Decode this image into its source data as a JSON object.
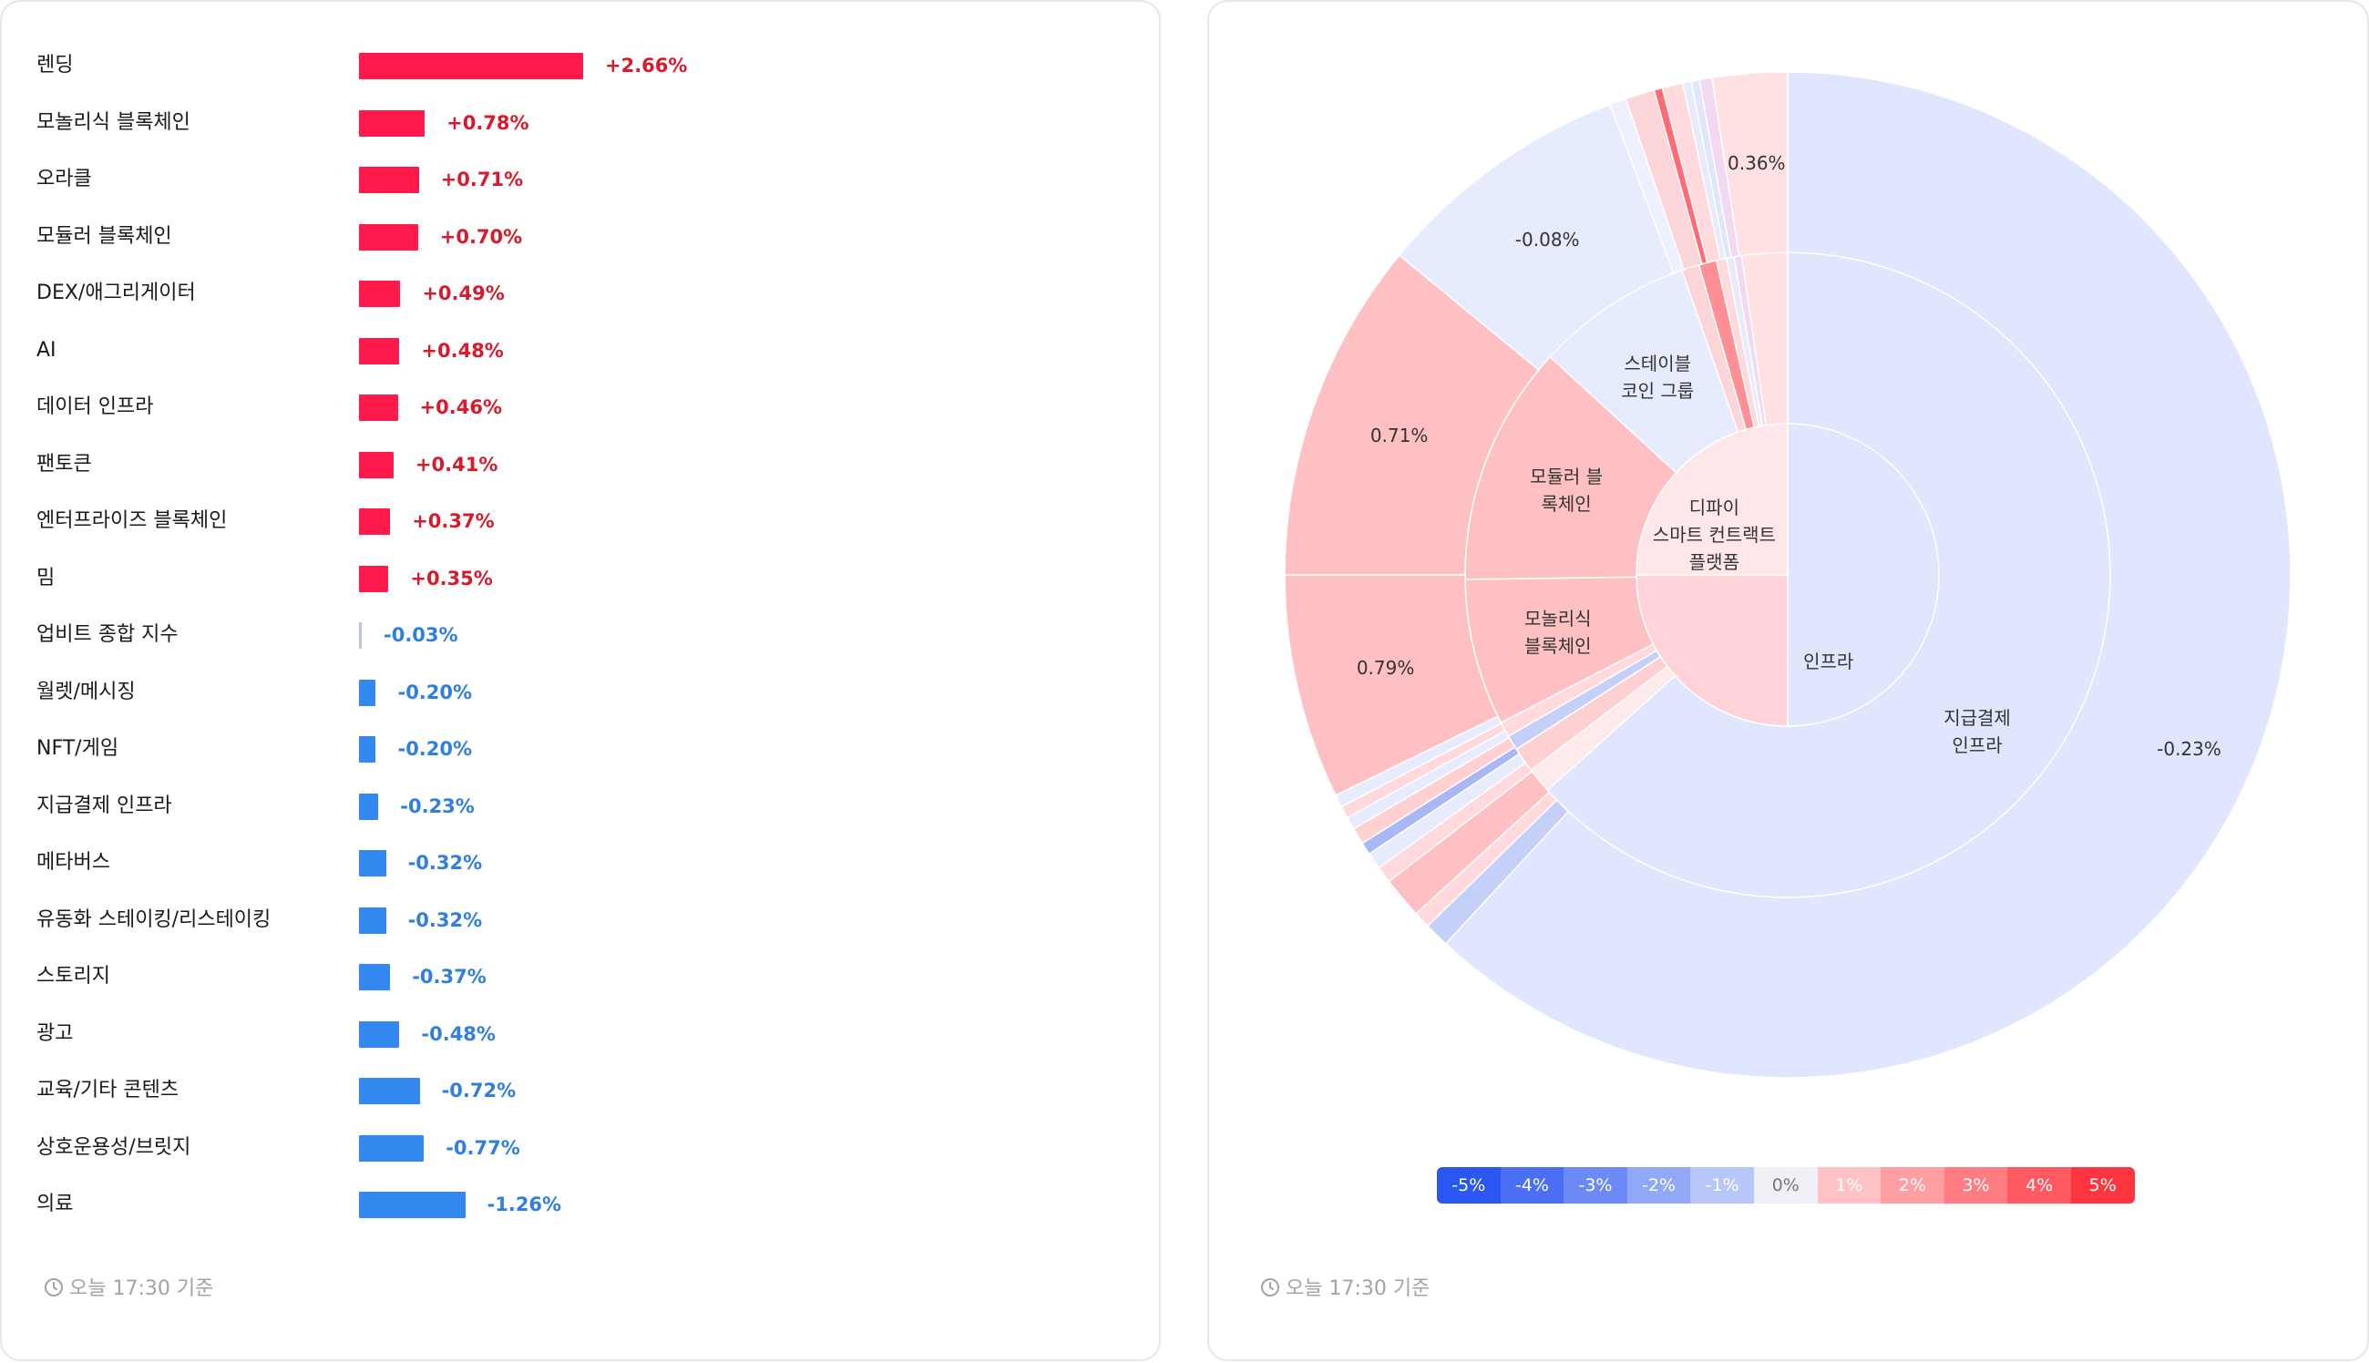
{
  "chart_data": [
    {
      "type": "bar",
      "orientation": "horizontal",
      "categories": [
        "렌딩",
        "모놀리식 블록체인",
        "오라클",
        "모듈러 블록체인",
        "DEX/애그리게이터",
        "AI",
        "데이터 인프라",
        "팬토큰",
        "엔터프라이즈 블록체인",
        "밈",
        "업비트 종합 지수",
        "월렛/메시징",
        "NFT/게임",
        "지급결제 인프라",
        "메타버스",
        "유동화 스테이킹/리스테이킹",
        "스토리지",
        "광고",
        "교육/기타 콘텐츠",
        "상호운용성/브릿지",
        "의료"
      ],
      "values": [
        2.66,
        0.78,
        0.71,
        0.7,
        0.49,
        0.48,
        0.46,
        0.41,
        0.37,
        0.35,
        -0.03,
        -0.2,
        -0.2,
        -0.23,
        -0.32,
        -0.32,
        -0.37,
        -0.48,
        -0.72,
        -0.77,
        -1.26
      ],
      "value_labels": [
        "+2.66%",
        "+0.78%",
        "+0.71%",
        "+0.70%",
        "+0.49%",
        "+0.48%",
        "+0.46%",
        "+0.41%",
        "+0.37%",
        "+0.35%",
        "-0.03%",
        "-0.20%",
        "-0.20%",
        "-0.23%",
        "-0.32%",
        "-0.32%",
        "-0.37%",
        "-0.48%",
        "-0.72%",
        "-0.77%",
        "-1.26%"
      ],
      "title": "",
      "xlabel": "",
      "ylabel": "",
      "colors": {
        "positive_bar": "#ff1a4b",
        "negative_bar": "#3388f0",
        "zero_bar": "#bcc5d3",
        "positive_text": "#d81b2c",
        "negative_text": "#2e7fe0"
      },
      "footer": "오늘 17:30 기준"
    },
    {
      "type": "sunburst",
      "title": "",
      "rings": [
        "inner",
        "middle",
        "outer"
      ],
      "inner": [
        {
          "label": "인프라",
          "share": 0.5,
          "color": "#dfe6fd"
        },
        {
          "label": "디파이 스마트 컨트랙트 플랫폼",
          "share": 0.25,
          "color": "#ffd3d7"
        },
        {
          "label": "",
          "share": 0.25,
          "color": "#ffe6e8"
        }
      ],
      "middle": [
        {
          "label": "지급결제 인프라",
          "share": 0.5,
          "color": "#dfe6fd"
        },
        {
          "label": "",
          "share": 0.01,
          "color": "#fdeaeb"
        },
        {
          "label": "",
          "share": 0.01,
          "color": "#ffd0d2"
        },
        {
          "label": "",
          "share": 0.006,
          "color": "#c4d0f7"
        },
        {
          "label": "",
          "share": 0.006,
          "color": "#ffd9db"
        },
        {
          "label": "모놀리식 블록체인",
          "share": 0.058,
          "color": "#ffc0c3"
        },
        {
          "label": "모듈러 블록체인",
          "share": 0.095,
          "color": "#ffc0c3"
        },
        {
          "label": "스테이블 코인 그룹",
          "share": 0.062,
          "color": "#e6ebfd"
        },
        {
          "label": "",
          "share": 0.007,
          "color": "#fbd5d8"
        },
        {
          "label": "",
          "share": 0.007,
          "color": "#ff8f95"
        },
        {
          "label": "",
          "share": 0.004,
          "color": "#ffd9db"
        },
        {
          "label": "",
          "share": 0.003,
          "color": "#e6ebfd"
        },
        {
          "label": "",
          "share": 0.003,
          "color": "#f2d9f1"
        },
        {
          "label": "",
          "share": 0.018,
          "color": "#ffe1e3"
        }
      ],
      "outer": [
        {
          "label": "-0.23%",
          "value": -0.23,
          "share": 0.463,
          "color": "#dfe6fd"
        },
        {
          "label": "",
          "share": 0.006,
          "color": "#c4d0f7"
        },
        {
          "label": "",
          "share": 0.004,
          "color": "#ffd9db"
        },
        {
          "label": "",
          "share": 0.01,
          "color": "#ffc0c3"
        },
        {
          "label": "",
          "share": 0.004,
          "color": "#ffd9db"
        },
        {
          "label": "",
          "share": 0.004,
          "color": "#e6ebfd"
        },
        {
          "label": "",
          "share": 0.003,
          "color": "#a8b8f4"
        },
        {
          "label": "",
          "share": 0.004,
          "color": "#ffd0d2"
        },
        {
          "label": "",
          "share": 0.003,
          "color": "#e6ebfd"
        },
        {
          "label": "",
          "share": 0.003,
          "color": "#ffd9db"
        },
        {
          "label": "",
          "share": 0.003,
          "color": "#e6ebfd"
        },
        {
          "label": "0.79%",
          "value": 0.79,
          "share": 0.054,
          "color": "#ffc0c3"
        },
        {
          "label": "0.71%",
          "value": 0.71,
          "share": 0.082,
          "color": "#ffc0c3"
        },
        {
          "label": "-0.08%",
          "value": -0.08,
          "share": 0.062,
          "color": "#e6ebfd"
        },
        {
          "label": "",
          "share": 0.004,
          "color": "#eef1fd"
        },
        {
          "label": "",
          "share": 0.007,
          "color": "#fbd5d8"
        },
        {
          "label": "",
          "share": 0.002,
          "color": "#ff6b74"
        },
        {
          "label": "",
          "share": 0.005,
          "color": "#ffd9db"
        },
        {
          "label": "",
          "share": 0.002,
          "color": "#e6ebfd"
        },
        {
          "label": "",
          "share": 0.002,
          "color": "#dfe6fd"
        },
        {
          "label": "",
          "share": 0.003,
          "color": "#f2d9f1"
        },
        {
          "label": "0.36%",
          "value": 0.36,
          "share": 0.018,
          "color": "#ffe1e3"
        }
      ],
      "legend": {
        "labels": [
          "-5%",
          "-4%",
          "-3%",
          "-2%",
          "-1%",
          "0%",
          "1%",
          "2%",
          "3%",
          "4%",
          "5%"
        ],
        "colors": [
          "#2b56f2",
          "#4a6ff4",
          "#6c8af5",
          "#91a8f7",
          "#b8c7fa",
          "#eef0f6",
          "#ffc3c6",
          "#ff9ea3",
          "#ff7c83",
          "#ff5a62",
          "#ff363f"
        ],
        "text_colors": [
          "#ffffff",
          "#ffffff",
          "#ffffff",
          "#ffffff",
          "#ffffff",
          "#777777",
          "#ffffff",
          "#ffffff",
          "#ffffff",
          "#ffffff",
          "#ffffff"
        ]
      },
      "footer": "오늘 17:30 기준"
    }
  ]
}
